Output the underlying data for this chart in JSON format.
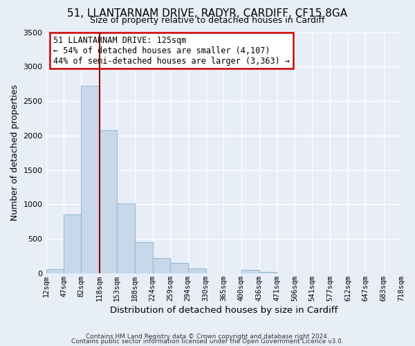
{
  "title": "51, LLANTARNAM DRIVE, RADYR, CARDIFF, CF15 8GA",
  "subtitle": "Size of property relative to detached houses in Cardiff",
  "xlabel": "Distribution of detached houses by size in Cardiff",
  "ylabel": "Number of detached properties",
  "bar_color": "#c8d8ea",
  "bar_edgecolor": "#9ab8d0",
  "bin_edges": [
    12,
    47,
    82,
    118,
    153,
    188,
    224,
    259,
    294,
    330,
    365,
    400,
    436,
    471,
    506,
    541,
    577,
    612,
    647,
    683,
    718
  ],
  "bin_labels": [
    "12sqm",
    "47sqm",
    "82sqm",
    "118sqm",
    "153sqm",
    "188sqm",
    "224sqm",
    "259sqm",
    "294sqm",
    "330sqm",
    "365sqm",
    "400sqm",
    "436sqm",
    "471sqm",
    "506sqm",
    "541sqm",
    "577sqm",
    "612sqm",
    "647sqm",
    "683sqm",
    "718sqm"
  ],
  "bar_heights": [
    55,
    850,
    2720,
    2080,
    1010,
    450,
    215,
    150,
    65,
    0,
    0,
    45,
    20,
    0,
    0,
    0,
    0,
    0,
    0,
    0
  ],
  "vline_x": 118,
  "vline_color": "#8b0000",
  "ylim": [
    0,
    3500
  ],
  "yticks": [
    0,
    500,
    1000,
    1500,
    2000,
    2500,
    3000,
    3500
  ],
  "annotation_line1": "51 LLANTARNAM DRIVE: 125sqm",
  "annotation_line2": "← 54% of detached houses are smaller (4,107)",
  "annotation_line3": "44% of semi-detached houses are larger (3,363) →",
  "annotation_box_edgecolor": "#cc0000",
  "annotation_box_facecolor": "#ffffff",
  "footer1": "Contains HM Land Registry data © Crown copyright and database right 2024.",
  "footer2": "Contains public sector information licensed under the Open Government Licence v3.0.",
  "background_color": "#e8eef8",
  "plot_bg_color": "#e8eef8"
}
